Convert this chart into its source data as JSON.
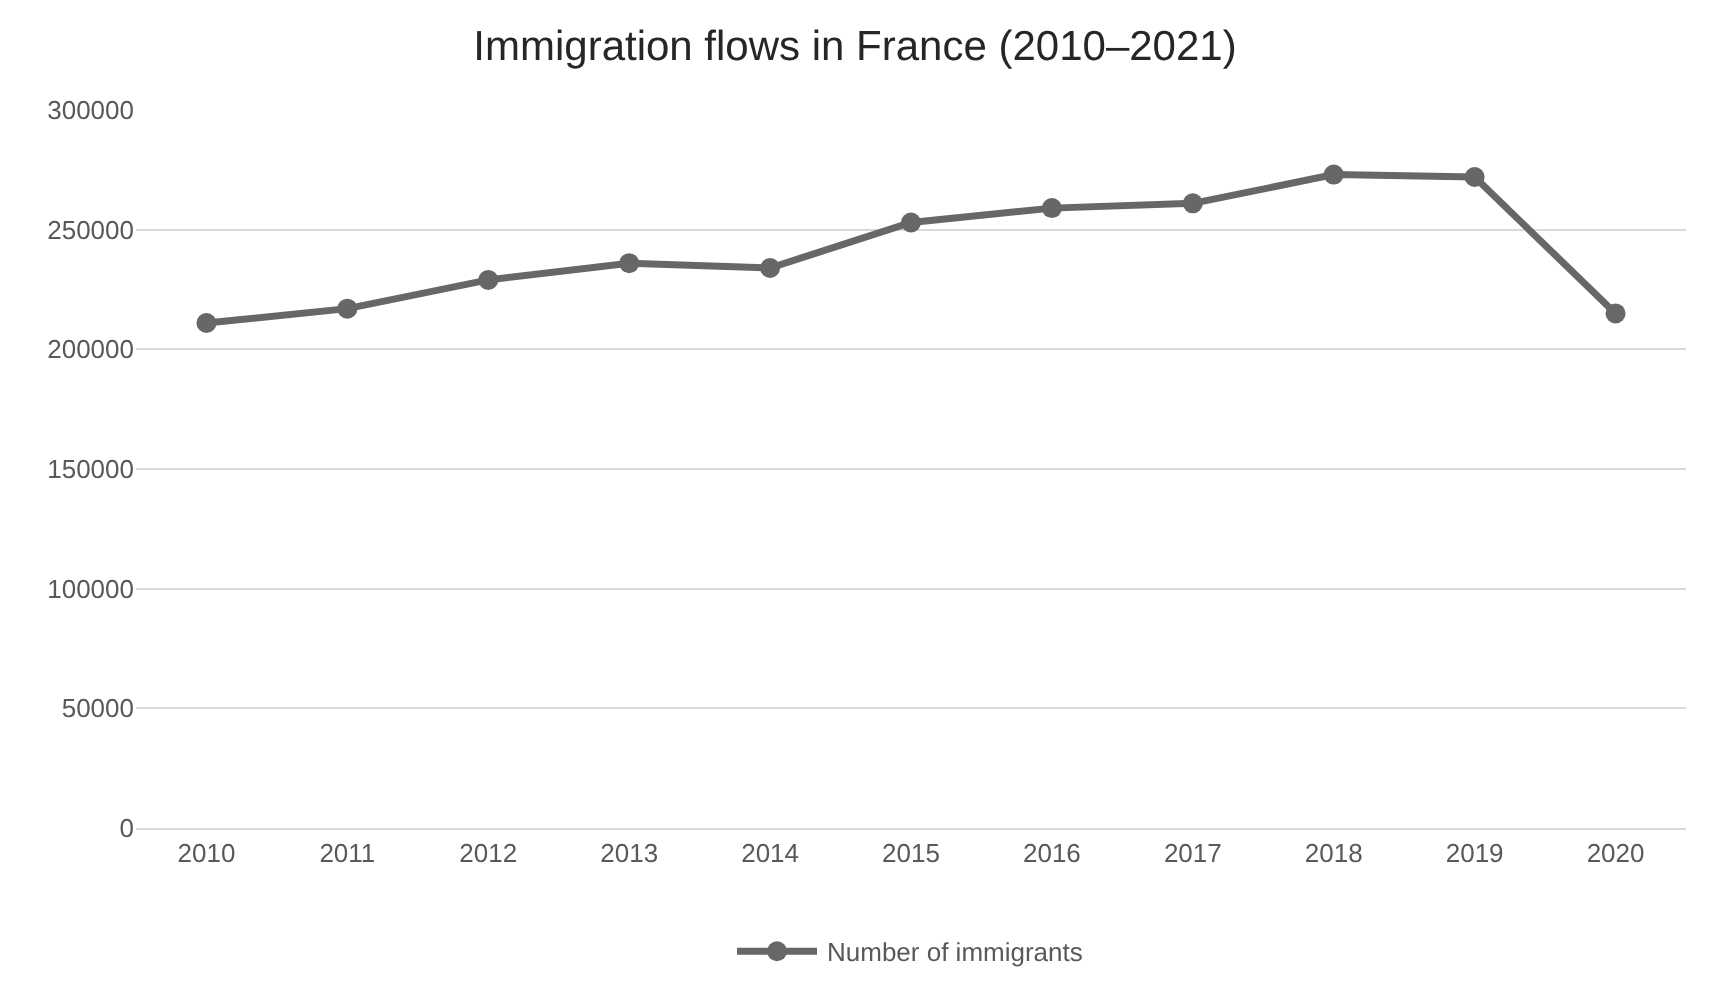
{
  "chart_data": {
    "type": "line",
    "title": "Immigration flows in France (2010–2021)",
    "categories": [
      "2010",
      "2011",
      "2012",
      "2013",
      "2014",
      "2015",
      "2016",
      "2017",
      "2018",
      "2019",
      "2020"
    ],
    "series": [
      {
        "name": "Number of immigrants",
        "color": "#676767",
        "values": [
          211000,
          217000,
          229000,
          236000,
          234000,
          253000,
          259000,
          261000,
          273000,
          272000,
          215000
        ]
      }
    ],
    "ylim": [
      0,
      300000
    ],
    "yticks": [
      0,
      50000,
      100000,
      150000,
      200000,
      250000,
      300000
    ],
    "grid": "y",
    "legend": "bottom",
    "marker": "circle",
    "line_style": "solid"
  }
}
